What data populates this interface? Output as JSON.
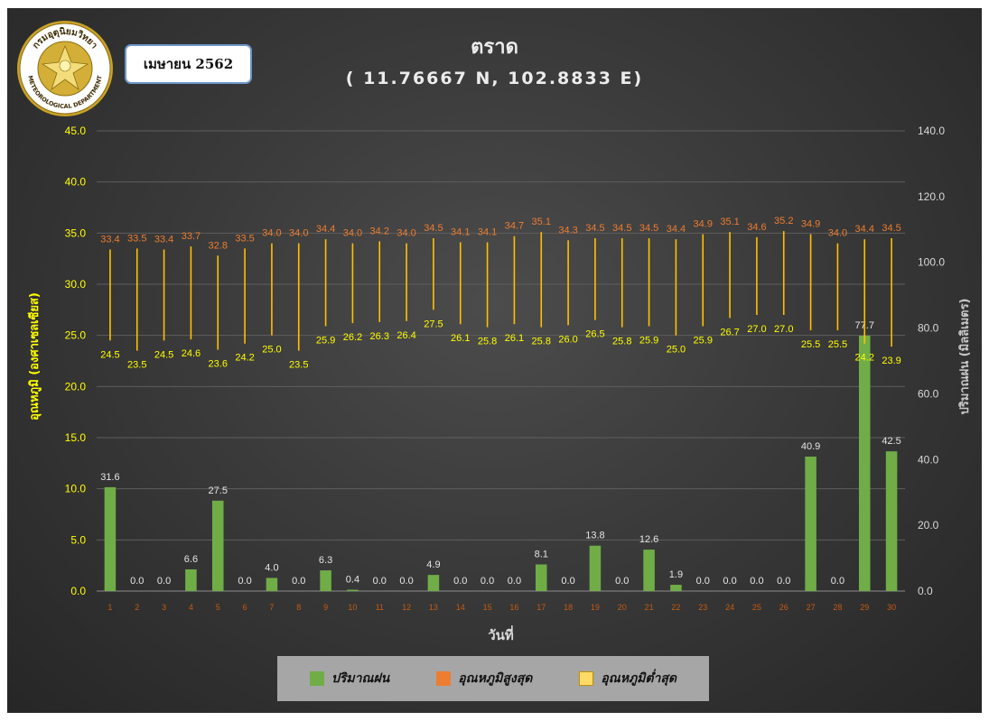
{
  "header": {
    "title": "ตราด",
    "subtitle": "( 11.76667 N, 102.8833 E)",
    "month_label": "เมษายน 2562",
    "logo_text_top": "กรมอุตุนิยมวิทยา",
    "logo_text_bottom": "METEOROLOGICAL DEPARTMENT"
  },
  "legend": {
    "items": [
      {
        "label": "ปริมาณฝน",
        "color": "#70ad47"
      },
      {
        "label": "อุณหภูมิสูงสุด",
        "color": "#ed7d31"
      },
      {
        "label": "อุณหภูมิต่ำสุด",
        "color": "#ffd966"
      }
    ]
  },
  "colors": {
    "rain": "#70ad47",
    "range_line": "#ffc000",
    "max_label": "#ed7d31",
    "min_label": "#ffff00",
    "left_axis": "#ffff00",
    "right_axis": "#d9d9d9",
    "x_tick": "#c55a11"
  },
  "chart_data": {
    "type": "bar",
    "xlabel": "วันที่",
    "ylabel_left": "อุณหภูมิ (องศาเซลเซียส)",
    "ylabel_right": "ปริมาณฝน (มิลลิเมตร)",
    "categories": [
      "1",
      "2",
      "3",
      "4",
      "5",
      "6",
      "7",
      "8",
      "9",
      "10",
      "11",
      "12",
      "13",
      "14",
      "15",
      "16",
      "17",
      "18",
      "19",
      "20",
      "21",
      "22",
      "23",
      "24",
      "25",
      "26",
      "27",
      "28",
      "29",
      "30"
    ],
    "y_left_lim": [
      0,
      45
    ],
    "y_left_ticks": [
      "0.0",
      "5.0",
      "10.0",
      "15.0",
      "20.0",
      "25.0",
      "30.0",
      "35.0",
      "40.0",
      "45.0"
    ],
    "y_right_lim": [
      0,
      140
    ],
    "y_right_ticks": [
      "0.0",
      "20.0",
      "40.0",
      "60.0",
      "80.0",
      "100.0",
      "120.0",
      "140.0"
    ],
    "grid": true,
    "legend_position": "bottom",
    "series": [
      {
        "name": "ปริมาณฝน",
        "type": "bar",
        "axis": "right",
        "values": [
          31.6,
          0.0,
          0.0,
          6.6,
          27.5,
          0.0,
          4.0,
          0.0,
          6.3,
          0.4,
          0.0,
          0.0,
          4.9,
          0.0,
          0.0,
          0.0,
          8.1,
          0.0,
          13.8,
          0.0,
          12.6,
          1.9,
          0.0,
          0.0,
          0.0,
          0.0,
          40.9,
          0.0,
          77.7,
          42.5
        ]
      },
      {
        "name": "อุณหภูมิสูงสุด",
        "type": "range-high",
        "axis": "left",
        "values": [
          33.4,
          33.5,
          33.4,
          33.7,
          32.8,
          33.5,
          34.0,
          34.0,
          34.4,
          34.0,
          34.2,
          34.0,
          34.5,
          34.1,
          34.1,
          34.7,
          35.1,
          34.3,
          34.5,
          34.5,
          34.5,
          34.4,
          34.9,
          35.1,
          34.6,
          35.2,
          34.9,
          34.0,
          34.4,
          34.5
        ]
      },
      {
        "name": "อุณหภูมิต่ำสุด",
        "type": "range-low",
        "axis": "left",
        "values": [
          24.5,
          23.5,
          24.5,
          24.6,
          23.6,
          24.2,
          25.0,
          23.5,
          25.9,
          26.2,
          26.3,
          26.4,
          27.5,
          26.1,
          25.8,
          26.1,
          25.8,
          26.0,
          26.5,
          25.8,
          25.9,
          25.0,
          25.9,
          26.7,
          27.0,
          27.0,
          25.5,
          25.5,
          24.2,
          23.9
        ]
      }
    ]
  }
}
